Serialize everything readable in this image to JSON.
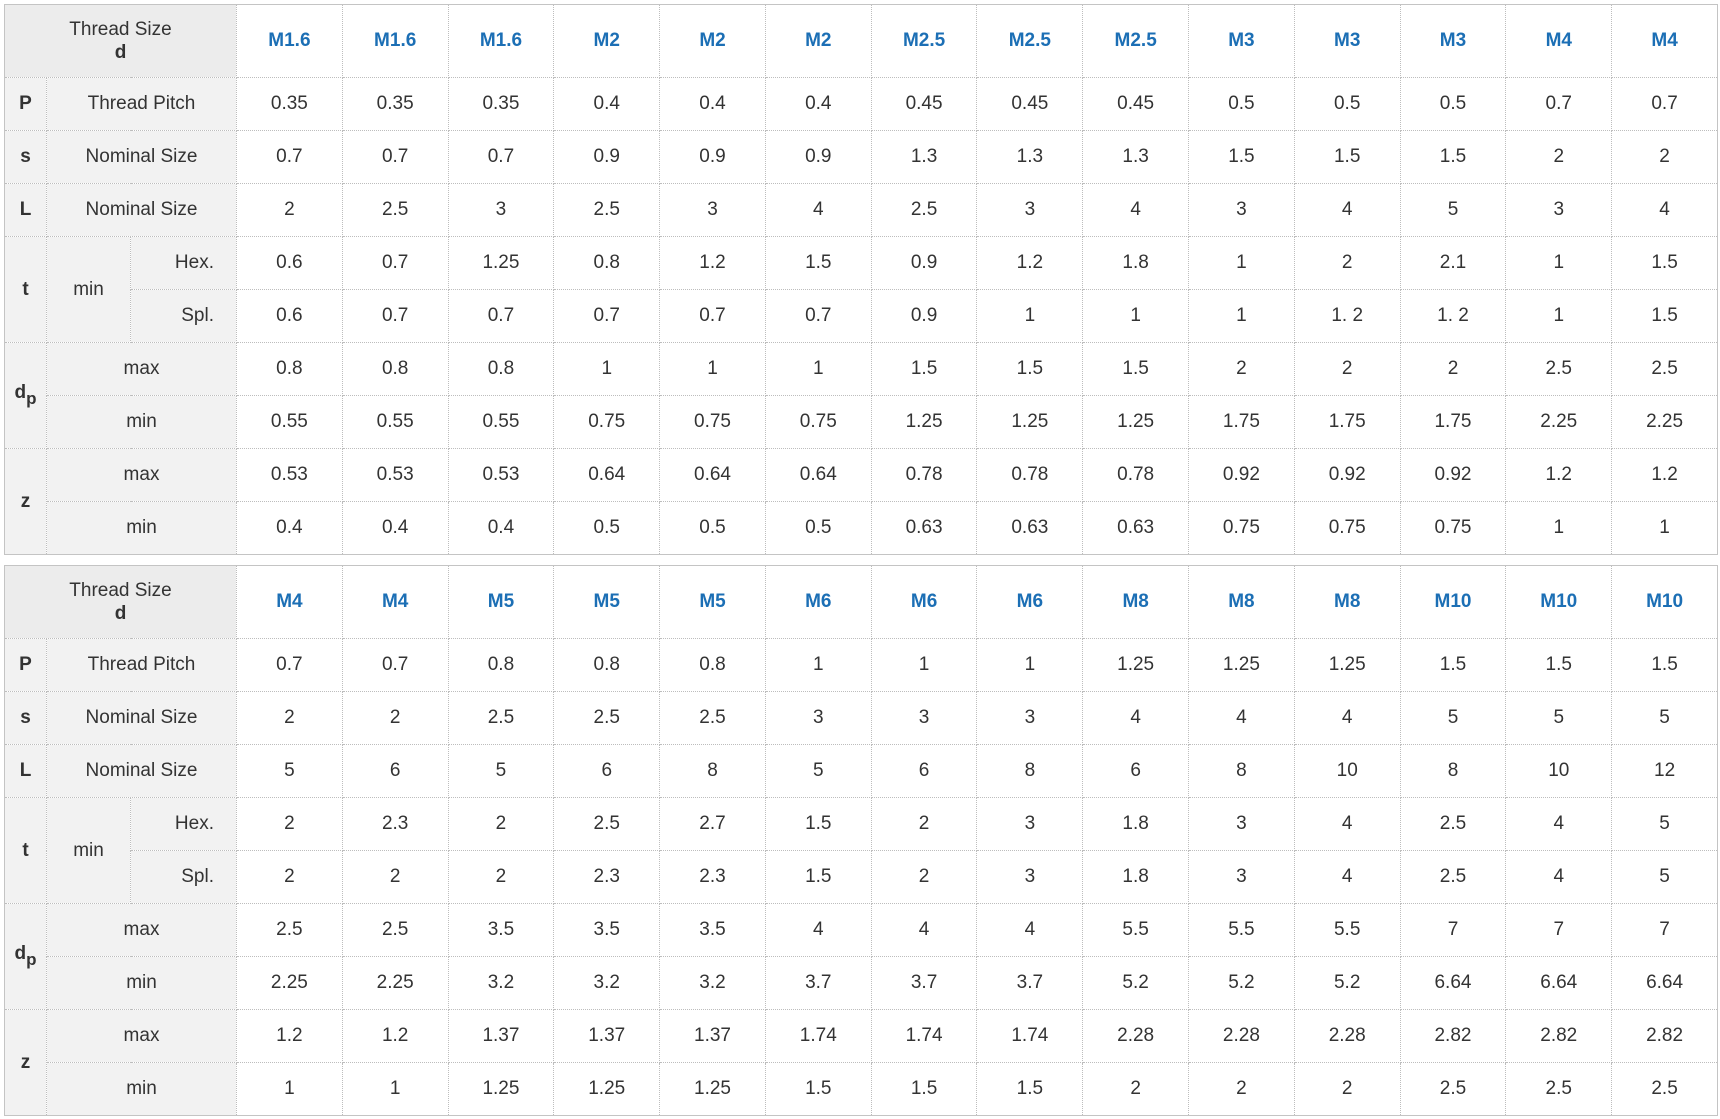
{
  "tables": [
    {
      "header": {
        "label": "Thread Size",
        "symbol": "d"
      },
      "sizes": [
        "M1.6",
        "M1.6",
        "M1.6",
        "M2",
        "M2",
        "M2",
        "M2.5",
        "M2.5",
        "M2.5",
        "M3",
        "M3",
        "M3",
        "M4",
        "M4"
      ],
      "row_labels": {
        "P": {
          "symbol": "P",
          "label": "Thread Pitch"
        },
        "s": {
          "symbol": "s",
          "label": "Nominal Size"
        },
        "L": {
          "symbol": "L",
          "label": "Nominal Size"
        },
        "t": {
          "symbol": "t",
          "sub_label": "min",
          "hex": "Hex.",
          "spl": "Spl."
        },
        "dp": {
          "symbol": "d",
          "subscript": "p",
          "max": "max",
          "min": "min"
        },
        "z": {
          "symbol": "z",
          "max": "max",
          "min": "min"
        }
      },
      "rows": {
        "P": [
          "0.35",
          "0.35",
          "0.35",
          "0.4",
          "0.4",
          "0.4",
          "0.45",
          "0.45",
          "0.45",
          "0.5",
          "0.5",
          "0.5",
          "0.7",
          "0.7"
        ],
        "s": [
          "0.7",
          "0.7",
          "0.7",
          "0.9",
          "0.9",
          "0.9",
          "1.3",
          "1.3",
          "1.3",
          "1.5",
          "1.5",
          "1.5",
          "2",
          "2"
        ],
        "L": [
          "2",
          "2.5",
          "3",
          "2.5",
          "3",
          "4",
          "2.5",
          "3",
          "4",
          "3",
          "4",
          "5",
          "3",
          "4"
        ],
        "t_hex": [
          "0.6",
          "0.7",
          "1.25",
          "0.8",
          "1.2",
          "1.5",
          "0.9",
          "1.2",
          "1.8",
          "1",
          "2",
          "2.1",
          "1",
          "1.5"
        ],
        "t_spl": [
          "0.6",
          "0.7",
          "0.7",
          "0.7",
          "0.7",
          "0.7",
          "0.9",
          "1",
          "1",
          "1",
          "1. 2",
          "1. 2",
          "1",
          "1.5"
        ],
        "dp_max": [
          "0.8",
          "0.8",
          "0.8",
          "1",
          "1",
          "1",
          "1.5",
          "1.5",
          "1.5",
          "2",
          "2",
          "2",
          "2.5",
          "2.5"
        ],
        "dp_min": [
          "0.55",
          "0.55",
          "0.55",
          "0.75",
          "0.75",
          "0.75",
          "1.25",
          "1.25",
          "1.25",
          "1.75",
          "1.75",
          "1.75",
          "2.25",
          "2.25"
        ],
        "z_max": [
          "0.53",
          "0.53",
          "0.53",
          "0.64",
          "0.64",
          "0.64",
          "0.78",
          "0.78",
          "0.78",
          "0.92",
          "0.92",
          "0.92",
          "1.2",
          "1.2"
        ],
        "z_min": [
          "0.4",
          "0.4",
          "0.4",
          "0.5",
          "0.5",
          "0.5",
          "0.63",
          "0.63",
          "0.63",
          "0.75",
          "0.75",
          "0.75",
          "1",
          "1"
        ]
      }
    },
    {
      "header": {
        "label": "Thread Size",
        "symbol": "d"
      },
      "sizes": [
        "M4",
        "M4",
        "M5",
        "M5",
        "M5",
        "M6",
        "M6",
        "M6",
        "M8",
        "M8",
        "M8",
        "M10",
        "M10",
        "M10"
      ],
      "row_labels": {
        "P": {
          "symbol": "P",
          "label": "Thread Pitch"
        },
        "s": {
          "symbol": "s",
          "label": "Nominal Size"
        },
        "L": {
          "symbol": "L",
          "label": "Nominal Size"
        },
        "t": {
          "symbol": "t",
          "sub_label": "min",
          "hex": "Hex.",
          "spl": "Spl."
        },
        "dp": {
          "symbol": "d",
          "subscript": "p",
          "max": "max",
          "min": "min"
        },
        "z": {
          "symbol": "z",
          "max": "max",
          "min": "min"
        }
      },
      "rows": {
        "P": [
          "0.7",
          "0.7",
          "0.8",
          "0.8",
          "0.8",
          "1",
          "1",
          "1",
          "1.25",
          "1.25",
          "1.25",
          "1.5",
          "1.5",
          "1.5"
        ],
        "s": [
          "2",
          "2",
          "2.5",
          "2.5",
          "2.5",
          "3",
          "3",
          "3",
          "4",
          "4",
          "4",
          "5",
          "5",
          "5"
        ],
        "L": [
          "5",
          "6",
          "5",
          "6",
          "8",
          "5",
          "6",
          "8",
          "6",
          "8",
          "10",
          "8",
          "10",
          "12"
        ],
        "t_hex": [
          "2",
          "2.3",
          "2",
          "2.5",
          "2.7",
          "1.5",
          "2",
          "3",
          "1.8",
          "3",
          "4",
          "2.5",
          "4",
          "5"
        ],
        "t_spl": [
          "2",
          "2",
          "2",
          "2.3",
          "2.3",
          "1.5",
          "2",
          "3",
          "1.8",
          "3",
          "4",
          "2.5",
          "4",
          "5"
        ],
        "dp_max": [
          "2.5",
          "2.5",
          "3.5",
          "3.5",
          "3.5",
          "4",
          "4",
          "4",
          "5.5",
          "5.5",
          "5.5",
          "7",
          "7",
          "7"
        ],
        "dp_min": [
          "2.25",
          "2.25",
          "3.2",
          "3.2",
          "3.2",
          "3.7",
          "3.7",
          "3.7",
          "5.2",
          "5.2",
          "5.2",
          "6.64",
          "6.64",
          "6.64"
        ],
        "z_max": [
          "1.2",
          "1.2",
          "1.37",
          "1.37",
          "1.37",
          "1.74",
          "1.74",
          "1.74",
          "2.28",
          "2.28",
          "2.28",
          "2.82",
          "2.82",
          "2.82"
        ],
        "z_min": [
          "1",
          "1",
          "1.25",
          "1.25",
          "1.25",
          "1.5",
          "1.5",
          "1.5",
          "2",
          "2",
          "2",
          "2.5",
          "2.5",
          "2.5"
        ]
      }
    }
  ]
}
